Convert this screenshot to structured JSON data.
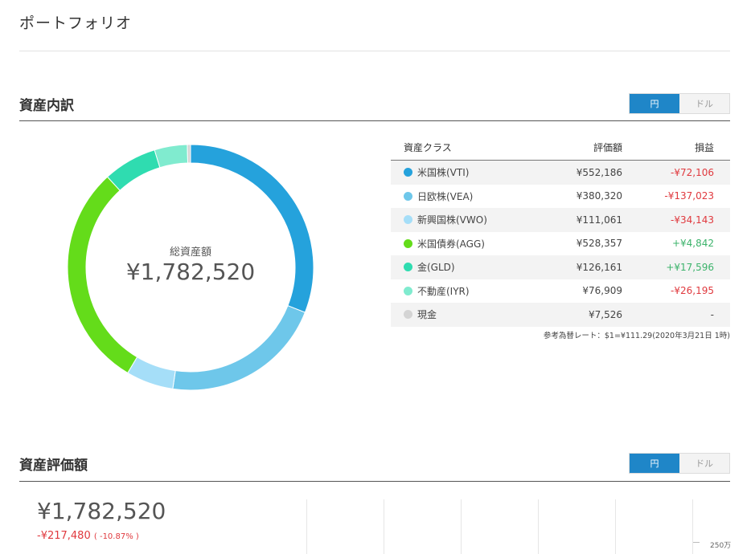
{
  "page_title": "ポートフォリオ",
  "breakdown": {
    "title": "資産内訳",
    "toggle": {
      "yen": "円",
      "dollar": "ドル"
    },
    "donut": {
      "caption": "総資産額",
      "total": "¥1,782,520"
    },
    "table": {
      "headers": {
        "class": "資産クラス",
        "value": "評価額",
        "pl": "損益"
      },
      "rows": [
        {
          "name": "米国株(VTI)",
          "color": "#25a2dc",
          "value": "¥552,186",
          "pl": "-¥72,106",
          "trend": "neg",
          "amount": 552186
        },
        {
          "name": "日欧株(VEA)",
          "color": "#6ec7ea",
          "value": "¥380,320",
          "pl": "-¥137,023",
          "trend": "neg",
          "amount": 380320
        },
        {
          "name": "新興国株(VWO)",
          "color": "#a5def8",
          "value": "¥111,061",
          "pl": "-¥34,143",
          "trend": "neg",
          "amount": 111061
        },
        {
          "name": "米国債券(AGG)",
          "color": "#64dc1a",
          "value": "¥528,357",
          "pl": "+¥4,842",
          "trend": "pos",
          "amount": 528357
        },
        {
          "name": "金(GLD)",
          "color": "#2fdcb0",
          "value": "¥126,161",
          "pl": "+¥17,596",
          "trend": "pos",
          "amount": 126161
        },
        {
          "name": "不動産(IYR)",
          "color": "#80ebcf",
          "value": "¥76,909",
          "pl": "-¥26,195",
          "trend": "neg",
          "amount": 76909
        },
        {
          "name": "現金",
          "color": "#d4d4d4",
          "value": "¥7,526",
          "pl": "-",
          "trend": "none",
          "amount": 7526
        }
      ]
    },
    "rate_note": "参考為替レート：$1=¥111.29(2020年3月21日 1時)"
  },
  "valuation": {
    "title": "資産評価額",
    "toggle": {
      "yen": "円",
      "dollar": "ドル"
    },
    "total": "¥1,782,520",
    "change": "-¥217,480",
    "change_pct": "( -10.87% )",
    "axis_label": "250万"
  }
}
